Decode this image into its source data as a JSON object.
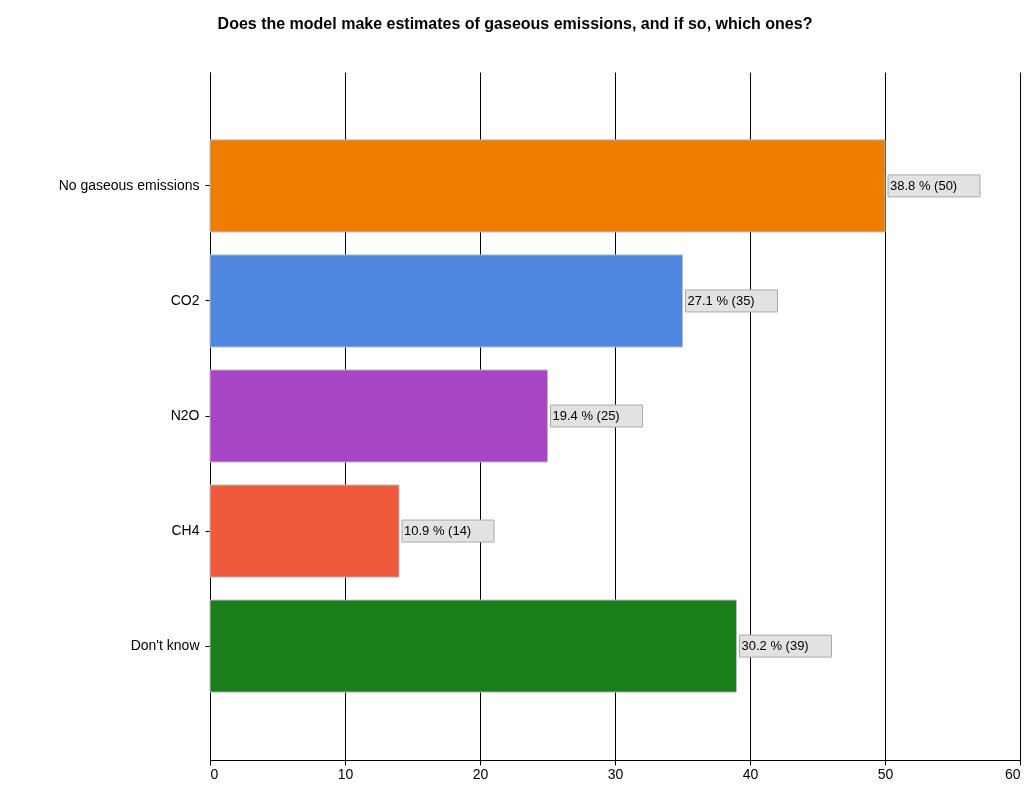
{
  "chart_data": {
    "type": "bar",
    "orientation": "horizontal",
    "title": "Does the model make estimates of gaseous emissions, and if so, which ones?",
    "categories": [
      "No gaseous emissions",
      "CO2",
      "N2O",
      "CH4",
      "Don't know"
    ],
    "values": [
      50,
      35,
      25,
      14,
      39
    ],
    "colors": [
      "#ef7d00",
      "#4f86df",
      "#a845c6",
      "#f05a3c",
      "#1a7f1a"
    ],
    "value_labels": [
      "38.8 % (50)",
      "27.1 % (35)",
      "19.4 % (25)",
      "10.9 % (14)",
      "30.2 % (39)"
    ],
    "xlim": [
      0,
      60
    ],
    "xticks": [
      0,
      10,
      20,
      30,
      40,
      50,
      60
    ],
    "grid": "x"
  }
}
